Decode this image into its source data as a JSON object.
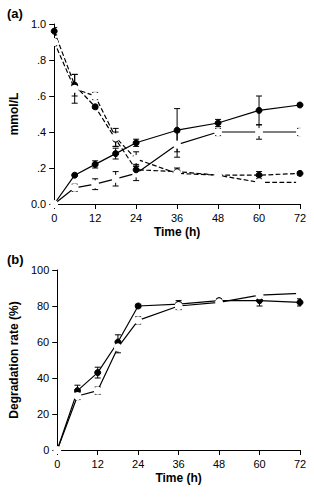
{
  "chart_data": [
    {
      "type": "line",
      "title": "(a)",
      "xlabel": "Time (h)",
      "ylabel": "mmol/L",
      "x": [
        0,
        6,
        12,
        18,
        24,
        36,
        48,
        60,
        72
      ],
      "xlim": [
        0,
        72
      ],
      "xticks": [
        0,
        12,
        24,
        36,
        48,
        60,
        72
      ],
      "ylim": [
        0,
        1.0
      ],
      "yticks": [
        {
          "value": 0,
          "label": "0.0"
        },
        {
          "value": 0.2,
          "label": ".2"
        },
        {
          "value": 0.4,
          "label": ".4"
        },
        {
          "value": 0.6,
          "label": ".6"
        },
        {
          "value": 0.8,
          "label": ".8"
        },
        {
          "value": 1.0,
          "label": "1.0"
        }
      ],
      "grid": false,
      "series": [
        {
          "color": "#000000",
          "marker": "filled",
          "line_style": "solid",
          "values": [
            0,
            0.16,
            0.22,
            0.28,
            0.34,
            0.41,
            0.45,
            0.52,
            0.55
          ],
          "errors": [
            0,
            0,
            0.02,
            0.03,
            0.02,
            0.12,
            0.02,
            0.08,
            0.01
          ]
        },
        {
          "color": "#000000",
          "marker": "open",
          "line_style": "solid",
          "values": [
            0,
            0.09,
            0.11,
            0.14,
            0.17,
            0.33,
            0.4,
            0.4,
            0.4
          ],
          "errors": [
            0,
            0.02,
            0.03,
            0.04,
            0.04,
            0.07,
            0.02,
            0.04,
            0.02
          ]
        },
        {
          "color": "#000000",
          "marker": "filled",
          "line_style": "dashed",
          "values": [
            0.96,
            0.66,
            0.54,
            0.36,
            0.19,
            0.18,
            0.16,
            0.16,
            0.17
          ],
          "errors": [
            0.02,
            0.06,
            0.01,
            0.04,
            0.03,
            0.02,
            0.01,
            0.02,
            0.01
          ]
        },
        {
          "color": "#000000",
          "marker": "open",
          "line_style": "dashed",
          "values": [
            0.9,
            0.64,
            0.6,
            0.37,
            0.25,
            0.17,
            0.16,
            0.12,
            0.12
          ],
          "errors": [
            0.02,
            0.08,
            0.02,
            0.05,
            0.04,
            0.01,
            0.01,
            0.01,
            0.01
          ]
        }
      ]
    },
    {
      "type": "line",
      "title": "(b)",
      "xlabel": "Time (h)",
      "ylabel": "Degradation rate (%)",
      "x": [
        0,
        6,
        12,
        18,
        24,
        36,
        48,
        60,
        72
      ],
      "xlim": [
        0,
        72
      ],
      "xticks": [
        0,
        12,
        24,
        36,
        48,
        60,
        72
      ],
      "ylim": [
        0,
        100
      ],
      "yticks": [
        0,
        20,
        40,
        60,
        80,
        100
      ],
      "grid": false,
      "series": [
        {
          "color": "#000000",
          "marker": "filled",
          "line_style": "solid",
          "values": [
            0,
            33,
            43,
            60,
            80,
            81,
            83,
            83,
            82
          ],
          "errors": [
            0,
            3,
            3,
            4,
            1,
            2,
            1,
            3,
            2
          ]
        },
        {
          "color": "#000000",
          "marker": "open",
          "line_style": "solid",
          "values": [
            0,
            30,
            33,
            57,
            72,
            80,
            82,
            86,
            87
          ],
          "errors": [
            0,
            2,
            2,
            3,
            2,
            2,
            1,
            1,
            1
          ]
        }
      ]
    }
  ]
}
